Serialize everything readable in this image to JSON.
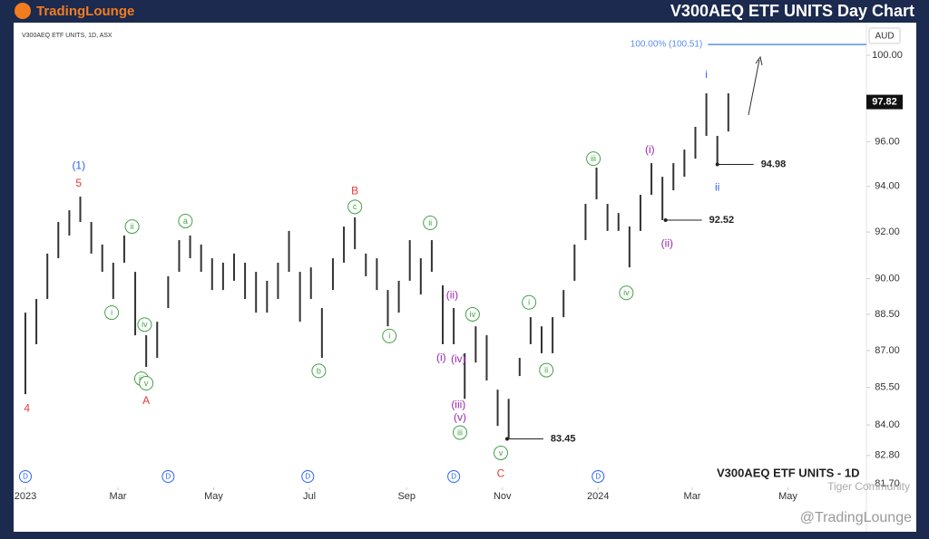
{
  "header": {
    "logo": "TradingLounge",
    "title": "V300AEQ ETF UNITS Day Chart"
  },
  "chart_data": {
    "type": "ohlc",
    "title": "V300AEQ ETF UNITS, 1D, ASX",
    "watermark": "V300AEQ ETF UNITS - 1D",
    "credit": "Tiger Community",
    "footer": "@TradingLounge",
    "currency": "AUD",
    "log_scale": true,
    "color": "#333333",
    "x": [
      0,
      7,
      14,
      21,
      28,
      35,
      42,
      49,
      56,
      63,
      70,
      77,
      84,
      91,
      98,
      105,
      112,
      119,
      126,
      133,
      140,
      147,
      154,
      161,
      168,
      175,
      182,
      189,
      196,
      203,
      210,
      217,
      224,
      231,
      238,
      245,
      252,
      259,
      266,
      273,
      280,
      287,
      294,
      301,
      308,
      315,
      322,
      329,
      336,
      343,
      350,
      357,
      364,
      371,
      378,
      385,
      392,
      399,
      406,
      413,
      420,
      427,
      434,
      441,
      448
    ],
    "high": [
      88.57,
      89.14,
      91.07,
      92.44,
      92.95,
      93.55,
      92.44,
      91.46,
      90.68,
      91.85,
      90.29,
      87.63,
      88.19,
      90.1,
      91.65,
      91.85,
      91.46,
      90.87,
      90.68,
      91.07,
      90.68,
      90.29,
      89.91,
      90.68,
      92.05,
      90.29,
      90.48,
      88.76,
      90.87,
      92.24,
      92.64,
      91.07,
      90.87,
      89.52,
      89.91,
      91.65,
      90.87,
      91.65,
      89.72,
      88.76,
      86.89,
      88.0,
      87.63,
      85.41,
      85.04,
      86.7,
      88.38,
      88.0,
      88.38,
      89.52,
      91.46,
      93.23,
      94.84,
      93.23,
      92.83,
      92.24,
      93.63,
      95.04,
      94.43,
      95.04,
      95.65,
      96.68,
      98.22,
      96.27,
      98.22
    ],
    "low": [
      85.23,
      87.26,
      89.14,
      90.87,
      91.85,
      92.44,
      91.07,
      90.29,
      89.14,
      90.68,
      87.63,
      86.33,
      86.7,
      88.76,
      90.29,
      90.87,
      90.29,
      89.52,
      89.52,
      89.91,
      89.14,
      88.57,
      88.57,
      89.14,
      90.29,
      88.19,
      89.14,
      86.7,
      89.52,
      90.68,
      91.26,
      90.1,
      89.52,
      88.0,
      88.57,
      89.91,
      89.33,
      90.29,
      87.26,
      87.26,
      85.04,
      86.51,
      85.78,
      83.96,
      83.45,
      85.96,
      87.26,
      86.89,
      86.89,
      88.38,
      89.91,
      91.65,
      93.43,
      92.05,
      92.05,
      90.48,
      92.05,
      93.63,
      92.52,
      93.83,
      94.43,
      95.24,
      96.27,
      94.98,
      96.47
    ],
    "xlim": [
      -7.5,
      536
    ],
    "ylim": [
      80.8,
      101.55
    ],
    "xticks": [
      {
        "value": 0,
        "label": "2023"
      },
      {
        "value": 59,
        "label": "Mar"
      },
      {
        "value": 120,
        "label": "May"
      },
      {
        "value": 181,
        "label": "Jul"
      },
      {
        "value": 243,
        "label": "Sep"
      },
      {
        "value": 304,
        "label": "Nov"
      },
      {
        "value": 365,
        "label": "2024"
      },
      {
        "value": 425,
        "label": "Mar"
      },
      {
        "value": 486,
        "label": "May"
      }
    ],
    "yticks": [
      {
        "value": 100,
        "label": "100.00"
      },
      {
        "value": 96,
        "label": "96.00"
      },
      {
        "value": 94,
        "label": "94.00"
      },
      {
        "value": 92,
        "label": "92.00"
      },
      {
        "value": 90,
        "label": "90.00"
      },
      {
        "value": 88.5,
        "label": "88.50"
      },
      {
        "value": 87,
        "label": "87.00"
      },
      {
        "value": 85.5,
        "label": "85.50"
      },
      {
        "value": 84,
        "label": "84.00"
      },
      {
        "value": 82.8,
        "label": "82.80"
      },
      {
        "value": 81.7,
        "label": "81.70"
      }
    ],
    "last_price": 97.82,
    "target": {
      "value": 100.51,
      "label": "100.00% (100.51)",
      "from": 435,
      "color": "#5b8def"
    },
    "price_markers": [
      {
        "value": 94.98,
        "from": 441
      },
      {
        "value": 92.52,
        "from": 408
      },
      {
        "value": 83.45,
        "from": 307
      }
    ],
    "dividends": {
      "label": "D",
      "x": [
        0,
        91,
        180,
        273,
        365
      ],
      "color": "#2962ff"
    },
    "annotations": [
      {
        "text": "(1)",
        "x": 34,
        "y": 94.92,
        "color": "#2962ff",
        "style": "plain"
      },
      {
        "text": "5",
        "x": 34,
        "y": 94.15,
        "color": "#e53935",
        "style": "plain"
      },
      {
        "text": "4",
        "x": 1,
        "y": 84.66,
        "color": "#e53935",
        "style": "plain"
      },
      {
        "text": "i",
        "x": 55,
        "y": 88.57,
        "color": "#43a047",
        "style": "circle"
      },
      {
        "text": "ii",
        "x": 68,
        "y": 92.24,
        "color": "#43a047",
        "style": "circle"
      },
      {
        "text": "iii",
        "x": 74,
        "y": 85.85,
        "color": "#43a047",
        "style": "circle"
      },
      {
        "text": "iv",
        "x": 76,
        "y": 88.07,
        "color": "#43a047",
        "style": "circle"
      },
      {
        "text": "v",
        "x": 77,
        "y": 85.67,
        "color": "#43a047",
        "style": "circle"
      },
      {
        "text": "A",
        "x": 77,
        "y": 84.96,
        "color": "#e53935",
        "style": "plain"
      },
      {
        "text": "a",
        "x": 102,
        "y": 92.48,
        "color": "#43a047",
        "style": "circle"
      },
      {
        "text": "b",
        "x": 187,
        "y": 86.17,
        "color": "#43a047",
        "style": "circle"
      },
      {
        "text": "c",
        "x": 210,
        "y": 93.1,
        "color": "#43a047",
        "style": "circle"
      },
      {
        "text": "B",
        "x": 210,
        "y": 93.8,
        "color": "#e53935",
        "style": "plain"
      },
      {
        "text": "i",
        "x": 232,
        "y": 87.6,
        "color": "#43a047",
        "style": "circle"
      },
      {
        "text": "ii",
        "x": 258,
        "y": 92.4,
        "color": "#43a047",
        "style": "circle"
      },
      {
        "text": "(i)",
        "x": 265,
        "y": 86.7,
        "color": "#9c27b0",
        "style": "plain"
      },
      {
        "text": "(ii)",
        "x": 272,
        "y": 89.3,
        "color": "#9c27b0",
        "style": "plain"
      },
      {
        "text": "(iii)",
        "x": 276,
        "y": 84.8,
        "color": "#9c27b0",
        "style": "plain"
      },
      {
        "text": "(iv)",
        "x": 276,
        "y": 86.65,
        "color": "#9c27b0",
        "style": "plain"
      },
      {
        "text": "(v)",
        "x": 277,
        "y": 84.3,
        "color": "#9c27b0",
        "style": "plain"
      },
      {
        "text": "iii",
        "x": 277,
        "y": 83.7,
        "color": "#43a047",
        "style": "circle"
      },
      {
        "text": "iv",
        "x": 285,
        "y": 88.5,
        "color": "#43a047",
        "style": "circle"
      },
      {
        "text": "v",
        "x": 303,
        "y": 82.9,
        "color": "#43a047",
        "style": "circle"
      },
      {
        "text": "C",
        "x": 303,
        "y": 82.1,
        "color": "#e53935",
        "style": "plain"
      },
      {
        "text": "i",
        "x": 321,
        "y": 89.0,
        "color": "#43a047",
        "style": "circle"
      },
      {
        "text": "ii",
        "x": 332,
        "y": 86.2,
        "color": "#43a047",
        "style": "circle"
      },
      {
        "text": "iii",
        "x": 362,
        "y": 95.24,
        "color": "#43a047",
        "style": "circle"
      },
      {
        "text": "iv",
        "x": 383,
        "y": 89.4,
        "color": "#43a047",
        "style": "circle"
      },
      {
        "text": "(i)",
        "x": 398,
        "y": 95.65,
        "color": "#9c27b0",
        "style": "plain"
      },
      {
        "text": "(ii)",
        "x": 409,
        "y": 91.5,
        "color": "#9c27b0",
        "style": "plain"
      },
      {
        "text": "i",
        "x": 434,
        "y": 99.1,
        "color": "#2962ff",
        "style": "plain"
      },
      {
        "text": "ii",
        "x": 441,
        "y": 93.95,
        "color": "#2962ff",
        "style": "plain"
      }
    ]
  }
}
